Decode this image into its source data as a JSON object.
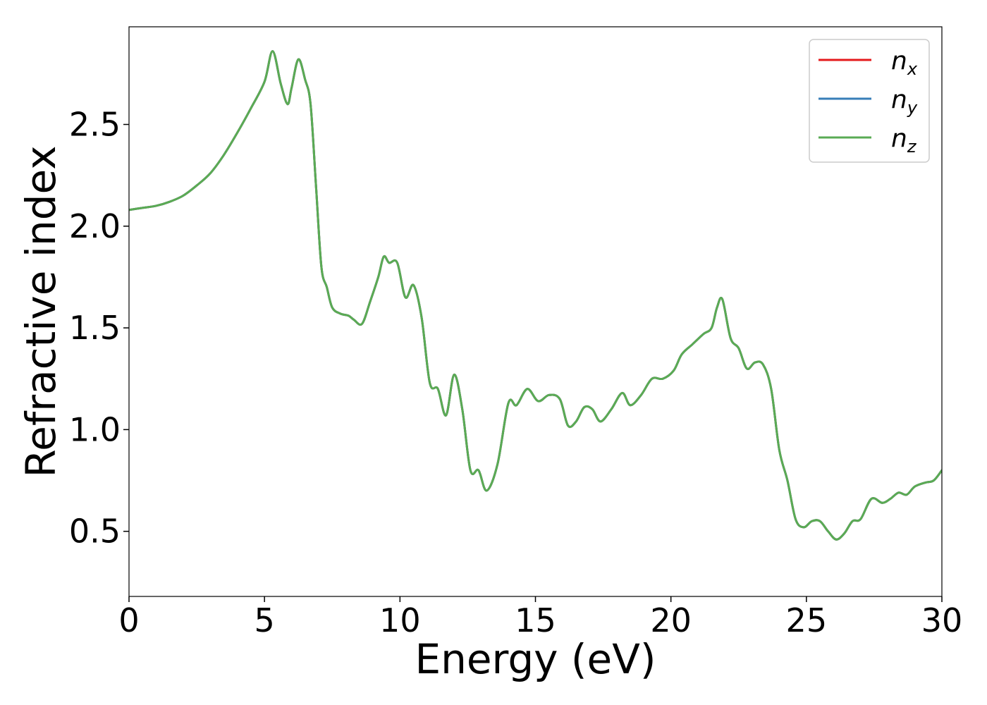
{
  "chart_data": {
    "type": "line",
    "xlabel": "Energy (eV)",
    "ylabel": "Refractive index",
    "xlim": [
      0,
      30
    ],
    "ylim": [
      0.18,
      2.98
    ],
    "xticks": [
      0,
      5,
      10,
      15,
      20,
      25,
      30
    ],
    "xtick_labels": [
      "0",
      "5",
      "10",
      "15",
      "20",
      "25",
      "30"
    ],
    "yticks": [
      0.5,
      1.0,
      1.5,
      2.0,
      2.5
    ],
    "ytick_labels": [
      "0.5",
      "1.0",
      "1.5",
      "2.0",
      "2.5"
    ],
    "grid": false,
    "legend_position": "top-right",
    "x": [
      0,
      0.5,
      1,
      1.5,
      2,
      2.5,
      3,
      3.5,
      4,
      4.5,
      5,
      5.3,
      5.6,
      5.85,
      6.0,
      6.25,
      6.5,
      6.7,
      6.9,
      7.1,
      7.3,
      7.5,
      7.8,
      8.1,
      8.3,
      8.6,
      8.9,
      9.2,
      9.4,
      9.6,
      9.9,
      10.2,
      10.5,
      10.8,
      11.1,
      11.4,
      11.7,
      12.0,
      12.3,
      12.6,
      12.9,
      13.2,
      13.6,
      14.0,
      14.3,
      14.7,
      15.1,
      15.5,
      15.9,
      16.2,
      16.5,
      16.8,
      17.1,
      17.4,
      17.8,
      18.2,
      18.5,
      18.9,
      19.3,
      19.7,
      20.1,
      20.4,
      20.8,
      21.2,
      21.5,
      21.7,
      21.9,
      22.2,
      22.5,
      22.8,
      23.1,
      23.4,
      23.7,
      24.0,
      24.3,
      24.6,
      24.9,
      25.2,
      25.5,
      25.8,
      26.1,
      26.4,
      26.7,
      27.0,
      27.4,
      27.8,
      28.1,
      28.4,
      28.7,
      29.0,
      29.4,
      29.7,
      30.0
    ],
    "series": [
      {
        "name": "n_x",
        "color": "#e41a1c",
        "values": [
          2.08,
          2.09,
          2.1,
          2.12,
          2.15,
          2.2,
          2.26,
          2.35,
          2.46,
          2.58,
          2.71,
          2.86,
          2.7,
          2.6,
          2.68,
          2.82,
          2.72,
          2.6,
          2.2,
          1.8,
          1.7,
          1.6,
          1.57,
          1.56,
          1.54,
          1.52,
          1.63,
          1.75,
          1.85,
          1.82,
          1.82,
          1.65,
          1.71,
          1.55,
          1.23,
          1.2,
          1.07,
          1.27,
          1.1,
          0.8,
          0.8,
          0.7,
          0.83,
          1.13,
          1.12,
          1.2,
          1.14,
          1.17,
          1.15,
          1.02,
          1.04,
          1.11,
          1.1,
          1.04,
          1.1,
          1.18,
          1.12,
          1.17,
          1.25,
          1.25,
          1.29,
          1.37,
          1.42,
          1.47,
          1.5,
          1.6,
          1.64,
          1.45,
          1.4,
          1.3,
          1.33,
          1.32,
          1.2,
          0.9,
          0.75,
          0.56,
          0.52,
          0.55,
          0.55,
          0.5,
          0.46,
          0.49,
          0.55,
          0.56,
          0.66,
          0.64,
          0.66,
          0.69,
          0.68,
          0.72,
          0.74,
          0.75,
          0.8
        ]
      },
      {
        "name": "n_y",
        "color": "#377eb8",
        "values": [
          2.08,
          2.09,
          2.1,
          2.12,
          2.15,
          2.2,
          2.26,
          2.35,
          2.46,
          2.58,
          2.71,
          2.86,
          2.7,
          2.6,
          2.68,
          2.82,
          2.72,
          2.6,
          2.2,
          1.8,
          1.7,
          1.6,
          1.57,
          1.56,
          1.54,
          1.52,
          1.63,
          1.75,
          1.85,
          1.82,
          1.82,
          1.65,
          1.71,
          1.55,
          1.23,
          1.2,
          1.07,
          1.27,
          1.1,
          0.8,
          0.8,
          0.7,
          0.83,
          1.13,
          1.12,
          1.2,
          1.14,
          1.17,
          1.15,
          1.02,
          1.04,
          1.11,
          1.1,
          1.04,
          1.1,
          1.18,
          1.12,
          1.17,
          1.25,
          1.25,
          1.29,
          1.37,
          1.42,
          1.47,
          1.5,
          1.6,
          1.64,
          1.45,
          1.4,
          1.3,
          1.33,
          1.32,
          1.2,
          0.9,
          0.75,
          0.56,
          0.52,
          0.55,
          0.55,
          0.5,
          0.46,
          0.49,
          0.55,
          0.56,
          0.66,
          0.64,
          0.66,
          0.69,
          0.68,
          0.72,
          0.74,
          0.75,
          0.8
        ]
      },
      {
        "name": "n_z",
        "color": "#5aab54",
        "values": [
          2.08,
          2.09,
          2.1,
          2.12,
          2.15,
          2.2,
          2.26,
          2.35,
          2.46,
          2.58,
          2.71,
          2.86,
          2.7,
          2.6,
          2.68,
          2.82,
          2.72,
          2.6,
          2.2,
          1.8,
          1.7,
          1.6,
          1.57,
          1.56,
          1.54,
          1.52,
          1.63,
          1.75,
          1.85,
          1.82,
          1.82,
          1.65,
          1.71,
          1.55,
          1.23,
          1.2,
          1.07,
          1.27,
          1.1,
          0.8,
          0.8,
          0.7,
          0.83,
          1.13,
          1.12,
          1.2,
          1.14,
          1.17,
          1.15,
          1.02,
          1.04,
          1.11,
          1.1,
          1.04,
          1.1,
          1.18,
          1.12,
          1.17,
          1.25,
          1.25,
          1.29,
          1.37,
          1.42,
          1.47,
          1.5,
          1.6,
          1.64,
          1.45,
          1.4,
          1.3,
          1.33,
          1.32,
          1.2,
          0.9,
          0.75,
          0.56,
          0.52,
          0.55,
          0.55,
          0.5,
          0.46,
          0.49,
          0.55,
          0.56,
          0.66,
          0.64,
          0.66,
          0.69,
          0.68,
          0.72,
          0.74,
          0.75,
          0.8
        ]
      }
    ],
    "legend": [
      {
        "base": "n",
        "sub": "x",
        "color": "#e41a1c"
      },
      {
        "base": "n",
        "sub": "y",
        "color": "#377eb8"
      },
      {
        "base": "n",
        "sub": "z",
        "color": "#5aab54"
      }
    ]
  }
}
